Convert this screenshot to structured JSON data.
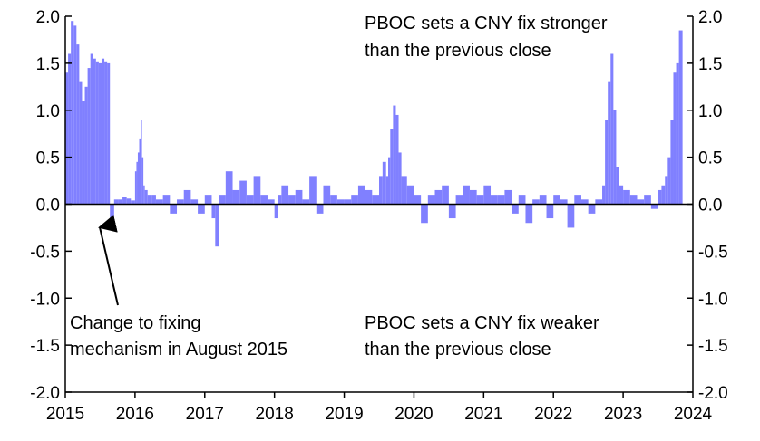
{
  "chart_data": {
    "type": "bar",
    "title": "",
    "xlabel": "",
    "ylabel": "",
    "xlim": [
      2015.0,
      2024.0
    ],
    "ylim": [
      -2.0,
      2.0
    ],
    "y_ticks": [
      "-2.0",
      "-1.5",
      "-1.0",
      "-0.5",
      "0.0",
      "0.5",
      "1.0",
      "1.5",
      "2.0"
    ],
    "x_ticks": [
      "2015",
      "2016",
      "2017",
      "2018",
      "2019",
      "2020",
      "2021",
      "2022",
      "2023",
      "2024"
    ],
    "dual_y_axis": true,
    "grid": false,
    "bar_color": "#8080ff",
    "series": [
      {
        "x": [
          2015.0,
          2015.04,
          2015.08,
          2015.12,
          2015.16,
          2015.2,
          2015.24,
          2015.28,
          2015.32,
          2015.36,
          2015.4,
          2015.44,
          2015.48,
          2015.52,
          2015.56,
          2015.6,
          2015.64,
          2015.7,
          2015.76,
          2015.82,
          2015.88,
          2015.94,
          2016.0,
          2016.02,
          2016.04,
          2016.06,
          2016.08,
          2016.1,
          2016.12,
          2016.14,
          2016.18,
          2016.24,
          2016.3,
          2016.4,
          2016.5,
          2016.6,
          2016.7,
          2016.8,
          2016.9,
          2017.0,
          2017.1,
          2017.15,
          2017.2,
          2017.3,
          2017.4,
          2017.5,
          2017.6,
          2017.7,
          2017.8,
          2017.9,
          2018.0,
          2018.05,
          2018.1,
          2018.2,
          2018.3,
          2018.4,
          2018.5,
          2018.6,
          2018.7,
          2018.8,
          2018.9,
          2019.0,
          2019.1,
          2019.2,
          2019.3,
          2019.4,
          2019.5,
          2019.55,
          2019.6,
          2019.63,
          2019.66,
          2019.7,
          2019.74,
          2019.78,
          2019.82,
          2019.9,
          2020.0,
          2020.1,
          2020.2,
          2020.3,
          2020.4,
          2020.5,
          2020.6,
          2020.7,
          2020.8,
          2020.9,
          2021.0,
          2021.1,
          2021.2,
          2021.3,
          2021.4,
          2021.5,
          2021.6,
          2021.7,
          2021.8,
          2021.9,
          2022.0,
          2022.1,
          2022.2,
          2022.3,
          2022.4,
          2022.5,
          2022.6,
          2022.7,
          2022.74,
          2022.78,
          2022.82,
          2022.86,
          2022.9,
          2022.94,
          2023.0,
          2023.1,
          2023.2,
          2023.3,
          2023.4,
          2023.5,
          2023.55,
          2023.6,
          2023.64,
          2023.68,
          2023.72,
          2023.76,
          2023.8
        ],
        "values": [
          1.4,
          1.6,
          1.95,
          1.9,
          1.7,
          1.3,
          1.1,
          1.25,
          1.45,
          1.6,
          1.55,
          1.52,
          1.5,
          1.55,
          1.52,
          1.5,
          -0.15,
          0.05,
          0.05,
          0.08,
          0.06,
          0.04,
          0.35,
          0.45,
          0.55,
          0.7,
          0.9,
          0.5,
          0.2,
          0.15,
          0.1,
          0.1,
          0.05,
          0.1,
          -0.1,
          0.05,
          0.15,
          0.05,
          -0.1,
          0.1,
          -0.15,
          -0.45,
          0.1,
          0.35,
          0.15,
          0.25,
          0.1,
          0.3,
          0.1,
          0.05,
          -0.15,
          0.1,
          0.2,
          0.1,
          0.15,
          0.05,
          0.3,
          -0.1,
          0.2,
          0.1,
          0.05,
          0.05,
          0.1,
          0.2,
          0.15,
          0.1,
          0.3,
          0.45,
          0.3,
          0.5,
          0.8,
          1.05,
          0.95,
          0.55,
          0.3,
          0.2,
          0.1,
          -0.2,
          0.1,
          0.15,
          0.2,
          -0.15,
          0.1,
          0.2,
          0.15,
          0.1,
          0.2,
          0.1,
          0.1,
          0.15,
          -0.1,
          0.1,
          -0.2,
          0.05,
          0.1,
          -0.15,
          0.1,
          0.05,
          -0.25,
          0.1,
          0.05,
          -0.1,
          0.05,
          0.2,
          0.9,
          1.3,
          1.6,
          1.0,
          0.4,
          0.2,
          0.15,
          0.1,
          0.05,
          0.1,
          -0.05,
          0.15,
          0.2,
          0.3,
          0.5,
          0.9,
          1.4,
          1.5,
          1.85
        ]
      }
    ],
    "annotations": [
      "PBOC sets a CNY fix stronger",
      "than the previous close",
      "PBOC sets a CNY fix weaker",
      "than the previous close",
      "Change to fixing",
      "mechanism in August 2015"
    ]
  }
}
